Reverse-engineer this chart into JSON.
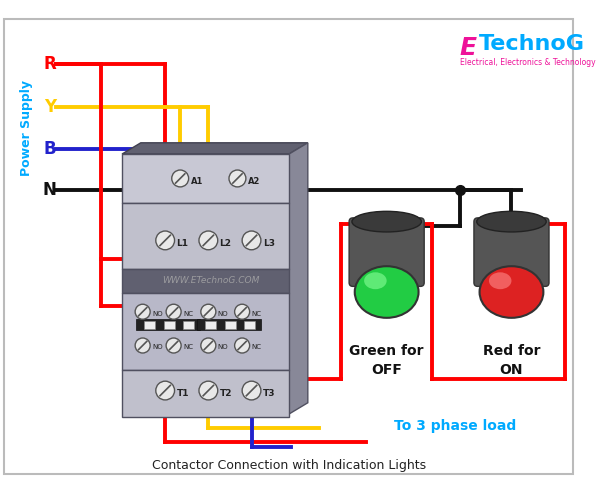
{
  "title": "Contactor Connection with Indication Lights",
  "bg_color": "#ffffff",
  "border_color": "#bbbbbb",
  "power_supply_label": "Power Supply",
  "phase_labels": [
    "R",
    "Y",
    "B",
    "N"
  ],
  "phase_colors": [
    "#ff0000",
    "#ffcc00",
    "#2222cc",
    "#111111"
  ],
  "wire_lw": 2.8,
  "load_label": "To 3 phase load",
  "load_label_color": "#00aaff",
  "logo_E_color": "#ee1199",
  "logo_text_color": "#00aaff",
  "logo_sub_color": "#ee1199",
  "green_label": "Green for\nOFF",
  "red_label": "Red for\nON",
  "watermark": "WWW.ETechnoG.COM"
}
